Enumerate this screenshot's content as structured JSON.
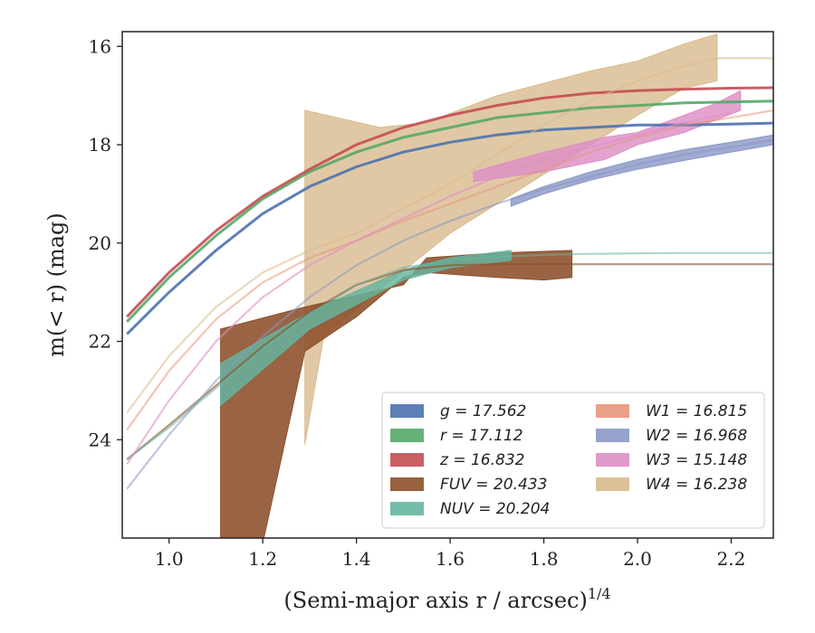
{
  "chart_data": {
    "type": "line",
    "xlabel": "(Semi-major axis r / arcsec)",
    "xlabel_exponent": "1/4",
    "ylabel": "m(< r) (mag)",
    "xlim": [
      0.9,
      2.29
    ],
    "ylim": [
      26.0,
      15.7
    ],
    "y_inverted": true,
    "grid": false,
    "legend_position": "lower-right",
    "x_ticks": [
      1.0,
      1.2,
      1.4,
      1.6,
      1.8,
      2.0,
      2.2
    ],
    "x_tick_labels": [
      "1.0",
      "1.2",
      "1.4",
      "1.6",
      "1.8",
      "2.0",
      "2.2"
    ],
    "y_ticks": [
      16,
      18,
      20,
      22,
      24
    ],
    "y_tick_labels": [
      "16",
      "18",
      "20",
      "22",
      "24"
    ],
    "series": [
      {
        "key": "g",
        "name": "g = 17.562",
        "color": "#4c72b0",
        "x": [
          0.91,
          1.0,
          1.1,
          1.2,
          1.3,
          1.4,
          1.5,
          1.6,
          1.7,
          1.8,
          1.9,
          2.0,
          2.1,
          2.2,
          2.29
        ],
        "y": [
          21.85,
          21.0,
          20.15,
          19.4,
          18.85,
          18.45,
          18.15,
          17.95,
          17.8,
          17.7,
          17.65,
          17.6,
          17.6,
          17.58,
          17.56
        ],
        "band_width": 0.06
      },
      {
        "key": "r",
        "name": "r = 17.112",
        "color": "#55a868",
        "x": [
          0.91,
          1.0,
          1.1,
          1.2,
          1.3,
          1.4,
          1.5,
          1.6,
          1.7,
          1.8,
          1.9,
          2.0,
          2.1,
          2.2,
          2.29
        ],
        "y": [
          21.6,
          20.7,
          19.85,
          19.1,
          18.55,
          18.15,
          17.85,
          17.65,
          17.45,
          17.35,
          17.25,
          17.2,
          17.15,
          17.13,
          17.11
        ],
        "band_width": 0.06
      },
      {
        "key": "z",
        "name": "z = 16.832",
        "color": "#c44e52",
        "x": [
          0.91,
          1.0,
          1.1,
          1.2,
          1.3,
          1.4,
          1.5,
          1.6,
          1.7,
          1.8,
          1.9,
          2.0,
          2.1,
          2.2,
          2.29
        ],
        "y": [
          21.5,
          20.6,
          19.75,
          19.05,
          18.5,
          18.0,
          17.65,
          17.4,
          17.2,
          17.05,
          16.95,
          16.9,
          16.87,
          16.85,
          16.84
        ],
        "band_width": 0.06
      },
      {
        "key": "FUV",
        "name": "FUV = 20.433",
        "color": "#8c4f2a",
        "x": [
          0.91,
          1.0,
          1.1,
          1.2,
          1.3,
          1.4,
          1.5,
          1.6,
          1.7,
          1.8,
          1.86,
          1.9,
          2.0,
          2.1,
          2.2,
          2.29
        ],
        "y": [
          24.4,
          23.7,
          22.9,
          22.1,
          21.4,
          20.85,
          20.55,
          20.45,
          20.43,
          20.43,
          20.43,
          20.43,
          20.43,
          20.43,
          20.43,
          20.43
        ],
        "line_opacity": 0.6,
        "band_polygon": {
          "upper": [
            [
              1.11,
              21.75
            ],
            [
              1.29,
              21.3
            ],
            [
              1.5,
              20.85
            ],
            [
              1.55,
              20.3
            ],
            [
              1.7,
              20.2
            ],
            [
              1.86,
              20.15
            ]
          ],
          "lower": [
            [
              1.86,
              20.7
            ],
            [
              1.8,
              20.75
            ],
            [
              1.7,
              20.7
            ],
            [
              1.55,
              20.6
            ],
            [
              1.5,
              20.7
            ],
            [
              1.4,
              21.5
            ],
            [
              1.29,
              22.2
            ],
            [
              1.2,
              26.1
            ],
            [
              1.11,
              26.1
            ]
          ]
        }
      },
      {
        "key": "NUV",
        "name": "NUV = 20.204",
        "color": "#64b5a0",
        "x": [
          0.91,
          1.0,
          1.1,
          1.2,
          1.3,
          1.4,
          1.5,
          1.6,
          1.7,
          1.8,
          1.9,
          2.0,
          2.1,
          2.2,
          2.29
        ],
        "y": [
          24.4,
          23.75,
          22.95,
          22.15,
          21.45,
          20.85,
          20.5,
          20.35,
          20.28,
          20.24,
          20.22,
          20.21,
          20.2,
          20.2,
          20.2
        ],
        "line_opacity": 0.55,
        "band_polygon": {
          "upper": [
            [
              1.11,
              22.45
            ],
            [
              1.3,
              21.4
            ],
            [
              1.5,
              20.55
            ],
            [
              1.6,
              20.3
            ],
            [
              1.73,
              20.15
            ]
          ],
          "lower": [
            [
              1.73,
              20.35
            ],
            [
              1.6,
              20.5
            ],
            [
              1.5,
              20.75
            ],
            [
              1.3,
              21.75
            ],
            [
              1.11,
              23.3
            ]
          ]
        }
      },
      {
        "key": "W1",
        "name": "W1 = 16.815",
        "color": "#e8957a",
        "x": [
          0.91,
          1.0,
          1.1,
          1.2,
          1.3,
          1.4,
          1.5,
          1.6,
          1.7,
          1.8,
          1.9,
          2.0,
          2.1,
          2.2,
          2.29
        ],
        "y": [
          23.8,
          22.6,
          21.55,
          20.8,
          20.3,
          19.95,
          19.55,
          19.2,
          18.85,
          18.5,
          18.15,
          17.85,
          17.6,
          17.45,
          17.3
        ],
        "line_opacity": 0.55
      },
      {
        "key": "W2",
        "name": "W2 = 16.968",
        "color": "#8a98c6",
        "x": [
          0.91,
          1.0,
          1.1,
          1.2,
          1.3,
          1.4,
          1.5,
          1.6,
          1.7,
          1.8,
          1.9,
          2.0,
          2.1,
          2.2,
          2.29
        ],
        "y": [
          25.0,
          23.9,
          22.8,
          21.9,
          21.1,
          20.45,
          19.95,
          19.55,
          19.2,
          18.9,
          18.65,
          18.4,
          18.2,
          18.05,
          17.9
        ],
        "line_opacity": 0.55,
        "band_polygon": {
          "upper": [
            [
              1.73,
              19.1
            ],
            [
              1.8,
              18.85
            ],
            [
              1.9,
              18.55
            ],
            [
              2.0,
              18.3
            ],
            [
              2.1,
              18.1
            ],
            [
              2.2,
              17.95
            ],
            [
              2.29,
              17.8
            ]
          ],
          "lower": [
            [
              2.29,
              18.0
            ],
            [
              2.2,
              18.15
            ],
            [
              2.1,
              18.32
            ],
            [
              2.0,
              18.5
            ],
            [
              1.9,
              18.72
            ],
            [
              1.8,
              19.0
            ],
            [
              1.73,
              19.25
            ]
          ]
        }
      },
      {
        "key": "W3",
        "name": "W3 = 15.148",
        "color": "#dd8fc4",
        "x": [
          0.91,
          1.0,
          1.1,
          1.2,
          1.3,
          1.4,
          1.5,
          1.6,
          1.7,
          1.8,
          1.9,
          2.0,
          2.1,
          2.2
        ],
        "y": [
          24.5,
          23.2,
          22.0,
          21.1,
          20.45,
          19.95,
          19.5,
          19.05,
          18.65,
          18.3,
          18.05,
          17.8,
          17.55,
          17.35
        ],
        "line_opacity": 0.6,
        "band_polygon": {
          "upper": [
            [
              1.65,
              18.55
            ],
            [
              1.8,
              18.15
            ],
            [
              1.93,
              17.85
            ],
            [
              2.0,
              17.75
            ],
            [
              2.1,
              17.4
            ],
            [
              2.17,
              17.15
            ],
            [
              2.22,
              16.9
            ]
          ],
          "lower": [
            [
              2.22,
              17.3
            ],
            [
              2.1,
              17.75
            ],
            [
              2.0,
              18.0
            ],
            [
              1.93,
              18.3
            ],
            [
              1.8,
              18.55
            ],
            [
              1.65,
              18.75
            ]
          ]
        }
      },
      {
        "key": "W4",
        "name": "W4 = 16.238",
        "color": "#d8b98c",
        "x": [
          0.91,
          1.0,
          1.1,
          1.2,
          1.3,
          1.4,
          1.5,
          1.6,
          1.7,
          1.8,
          1.9,
          2.0,
          2.1,
          2.17,
          2.29
        ],
        "y": [
          23.45,
          22.3,
          21.3,
          20.6,
          20.15,
          19.8,
          19.3,
          18.8,
          18.2,
          17.6,
          17.1,
          16.7,
          16.4,
          16.24,
          16.24
        ],
        "line_opacity": 0.55,
        "band_polygon": {
          "upper": [
            [
              1.29,
              17.3
            ],
            [
              1.45,
              17.65
            ],
            [
              1.55,
              17.55
            ],
            [
              1.7,
              17.0
            ],
            [
              1.8,
              16.75
            ],
            [
              1.9,
              16.5
            ],
            [
              2.0,
              16.3
            ],
            [
              2.1,
              15.95
            ],
            [
              2.17,
              15.75
            ]
          ],
          "lower": [
            [
              2.17,
              16.7
            ],
            [
              2.1,
              16.85
            ],
            [
              2.0,
              17.4
            ],
            [
              1.8,
              18.6
            ],
            [
              1.6,
              19.8
            ],
            [
              1.45,
              20.95
            ],
            [
              1.33,
              21.9
            ],
            [
              1.29,
              24.1
            ]
          ]
        }
      }
    ],
    "legend": [
      {
        "key": "g",
        "label": "g = 17.562",
        "color": "#4c72b0"
      },
      {
        "key": "r",
        "label": "r = 17.112",
        "color": "#55a868"
      },
      {
        "key": "z",
        "label": "z = 16.832",
        "color": "#c44e52"
      },
      {
        "key": "FUV",
        "label": "FUV = 20.433",
        "color": "#8c4f2a"
      },
      {
        "key": "NUV",
        "label": "NUV = 20.204",
        "color": "#64b5a0"
      },
      {
        "key": "W1",
        "label": "W1 = 16.815",
        "color": "#e8957a"
      },
      {
        "key": "W2",
        "label": "W2 = 16.968",
        "color": "#8a98c6"
      },
      {
        "key": "W3",
        "label": "W3 = 15.148",
        "color": "#dd8fc4"
      },
      {
        "key": "W4",
        "label": "W4 = 16.238",
        "color": "#d8b98c"
      }
    ]
  }
}
